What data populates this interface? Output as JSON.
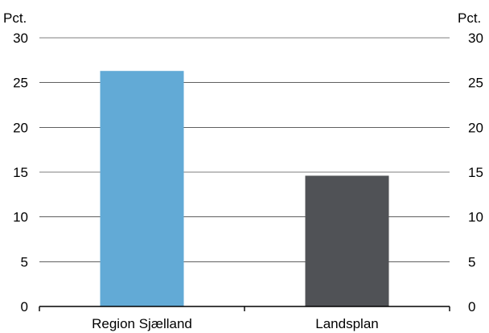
{
  "chart_data": {
    "type": "bar",
    "categories": [
      "Region Sjælland",
      "Landsplan"
    ],
    "values": [
      26.3,
      14.6
    ],
    "colors": [
      "#62aad6",
      "#505256"
    ],
    "y_unit_left": "Pct.",
    "y_unit_right": "Pct.",
    "ylim": [
      0,
      30
    ],
    "yticks": [
      0,
      5,
      10,
      15,
      20,
      25,
      30
    ],
    "grid": true,
    "legend": "none",
    "title": "",
    "xlabel": "",
    "ylabel": ""
  }
}
